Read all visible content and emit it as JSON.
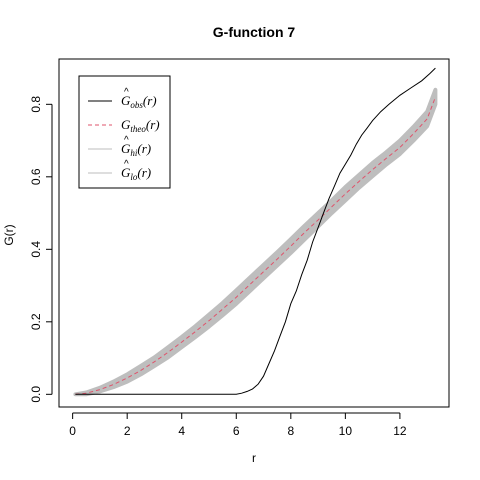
{
  "chart_data": {
    "type": "line",
    "title": "G-function 7",
    "xlabel": "r",
    "ylabel": "G(r)",
    "xlim": [
      -0.5,
      13.8
    ],
    "ylim": [
      -0.035,
      0.925
    ],
    "xticks": [
      0,
      2,
      4,
      6,
      8,
      10,
      12
    ],
    "yticks": [
      0.0,
      0.2,
      0.4,
      0.6,
      0.8
    ],
    "ytick_labels": [
      "0.0",
      "0.2",
      "0.4",
      "0.6",
      "0.8"
    ],
    "legend_position": "top-left",
    "envelope": {
      "color": "#bebebe",
      "x": [
        0.1,
        0.5,
        1,
        1.5,
        2,
        2.5,
        3,
        3.5,
        4,
        4.5,
        5,
        5.5,
        6,
        6.5,
        7,
        7.5,
        8,
        8.5,
        9,
        9.5,
        10,
        10.5,
        11,
        11.5,
        12,
        12.5,
        13,
        13.3
      ],
      "hi": [
        0.0,
        0.005,
        0.018,
        0.035,
        0.055,
        0.078,
        0.102,
        0.13,
        0.158,
        0.188,
        0.22,
        0.252,
        0.287,
        0.322,
        0.357,
        0.392,
        0.428,
        0.465,
        0.5,
        0.535,
        0.572,
        0.605,
        0.638,
        0.668,
        0.7,
        0.738,
        0.78,
        0.84
      ],
      "lo": [
        0.0,
        0.0,
        0.008,
        0.02,
        0.035,
        0.055,
        0.078,
        0.102,
        0.13,
        0.158,
        0.187,
        0.218,
        0.25,
        0.285,
        0.32,
        0.355,
        0.39,
        0.427,
        0.463,
        0.5,
        0.535,
        0.57,
        0.602,
        0.634,
        0.663,
        0.7,
        0.74,
        0.8
      ]
    },
    "series": [
      {
        "name": "obs",
        "color": "#000000",
        "dash": "solid",
        "x": [
          0.1,
          1,
          2,
          3,
          4,
          5,
          6.0,
          6.2,
          6.4,
          6.6,
          6.8,
          7.0,
          7.2,
          7.4,
          7.6,
          7.8,
          8.0,
          8.2,
          8.4,
          8.6,
          8.8,
          9.0,
          9.2,
          9.4,
          9.6,
          9.8,
          10.0,
          10.2,
          10.4,
          10.6,
          10.8,
          11.0,
          11.3,
          11.6,
          12.0,
          12.4,
          12.8,
          13.1,
          13.3
        ],
        "y": [
          0.0,
          0.0,
          0.0,
          0.0,
          0.0,
          0.0,
          0.0,
          0.003,
          0.008,
          0.015,
          0.028,
          0.05,
          0.085,
          0.12,
          0.16,
          0.2,
          0.25,
          0.285,
          0.33,
          0.37,
          0.42,
          0.46,
          0.5,
          0.54,
          0.575,
          0.61,
          0.635,
          0.66,
          0.69,
          0.715,
          0.735,
          0.755,
          0.78,
          0.8,
          0.825,
          0.845,
          0.865,
          0.885,
          0.9
        ]
      },
      {
        "name": "theo",
        "color": "#df536b",
        "dash": "dashed",
        "x": [
          0.1,
          0.5,
          1,
          1.5,
          2,
          2.5,
          3,
          3.5,
          4,
          4.5,
          5,
          5.5,
          6,
          6.5,
          7,
          7.5,
          8,
          8.5,
          9,
          9.5,
          10,
          10.5,
          11,
          11.5,
          12,
          12.5,
          13,
          13.3
        ],
        "y": [
          0.0,
          0.003,
          0.013,
          0.027,
          0.045,
          0.066,
          0.09,
          0.116,
          0.144,
          0.173,
          0.203,
          0.235,
          0.268,
          0.303,
          0.338,
          0.373,
          0.409,
          0.446,
          0.481,
          0.517,
          0.553,
          0.587,
          0.62,
          0.651,
          0.681,
          0.719,
          0.76,
          0.82
        ]
      }
    ],
    "legend": [
      {
        "key": "obs",
        "base": "G",
        "sub": "obs",
        "suffix": "(r)",
        "color": "#000000",
        "dash": "solid"
      },
      {
        "key": "theo",
        "base": "G",
        "sub": "theo",
        "suffix": "(r)",
        "color": "#df536b",
        "dash": "dashed"
      },
      {
        "key": "hi",
        "base": "G",
        "sub": "hi",
        "suffix": "(r)",
        "color": "#bebebe",
        "dash": "solid"
      },
      {
        "key": "lo",
        "base": "G",
        "sub": "lo",
        "suffix": "(r)",
        "color": "#bebebe",
        "dash": "solid"
      }
    ],
    "legend_hat": "^"
  }
}
